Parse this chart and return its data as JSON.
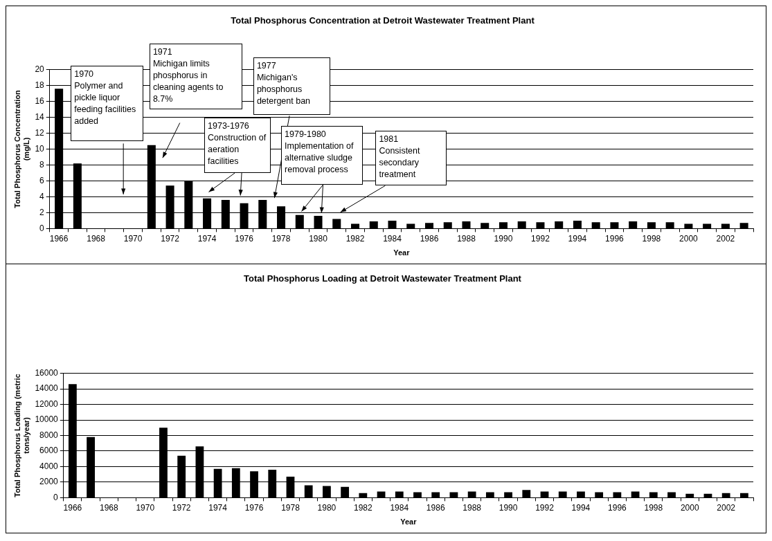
{
  "chart_data": [
    {
      "type": "bar",
      "title": "Total Phosphorus Concentration at Detroit Wastewater Treatment Plant",
      "xlabel": "Year",
      "ylabel": "Total Phosphorus Concentration (mg/L)",
      "categories": [
        "1966",
        null,
        "1968",
        null,
        "1970",
        null,
        "1972",
        null,
        "1974",
        null,
        "1976",
        null,
        "1978",
        null,
        "1980",
        null,
        "1982",
        null,
        "1984",
        null,
        "1986",
        null,
        "1988",
        null,
        "1990",
        null,
        "1992",
        null,
        "1994",
        null,
        "1996",
        null,
        "1998",
        null,
        "2000",
        null,
        "2002",
        null
      ],
      "values": [
        17.6,
        8.2,
        null,
        null,
        null,
        10.5,
        5.4,
        6.0,
        3.8,
        3.6,
        3.2,
        3.6,
        2.8,
        1.7,
        1.6,
        1.2,
        0.6,
        0.9,
        1.0,
        0.6,
        0.7,
        0.8,
        0.9,
        0.7,
        0.8,
        0.9,
        0.8,
        0.9,
        1.0,
        0.8,
        0.8,
        0.9,
        0.8,
        0.8,
        0.6,
        0.6,
        0.6,
        0.7
      ],
      "color": "#000000",
      "ylim": [
        0,
        20
      ],
      "yticks": [
        0,
        2,
        4,
        6,
        8,
        10,
        12,
        14,
        16,
        18,
        20
      ],
      "grid": "y",
      "legend": false,
      "annotations": [
        "1970 Polymer and pickle liquor feeding facilities added",
        "1971 Michigan limits phosphorus in cleaning agents to 8.7%",
        "1977 Michigan's phosphorus detergent ban",
        "1973-1976 Construction of aeration facilities",
        "1979-1980 Implementation of alternative sludge removal process",
        "1981 Consistent secondary treatment"
      ]
    },
    {
      "type": "bar",
      "title": "Total Phosphorus Loading at Detroit Wastewater Treatment Plant",
      "xlabel": "Year",
      "ylabel": "Total Phosphorus Loading (metric tons/year)",
      "categories": [
        "1966",
        null,
        "1968",
        null,
        "1970",
        null,
        "1972",
        null,
        "1974",
        null,
        "1976",
        null,
        "1978",
        null,
        "1980",
        null,
        "1982",
        null,
        "1984",
        null,
        "1986",
        null,
        "1988",
        null,
        "1990",
        null,
        "1992",
        null,
        "1994",
        null,
        "1996",
        null,
        "1998",
        null,
        "2000",
        null,
        "2002",
        null
      ],
      "values": [
        14600,
        7800,
        null,
        null,
        null,
        9000,
        5400,
        6600,
        3700,
        3800,
        3400,
        3600,
        2700,
        1600,
        1500,
        1400,
        600,
        800,
        800,
        700,
        700,
        700,
        800,
        700,
        700,
        1000,
        800,
        800,
        800,
        700,
        700,
        800,
        700,
        700,
        500,
        500,
        600,
        600
      ],
      "color": "#000000",
      "ylim": [
        0,
        16000
      ],
      "yticks": [
        0,
        2000,
        4000,
        6000,
        8000,
        10000,
        12000,
        14000,
        16000
      ],
      "grid": "y",
      "legend": false
    }
  ]
}
